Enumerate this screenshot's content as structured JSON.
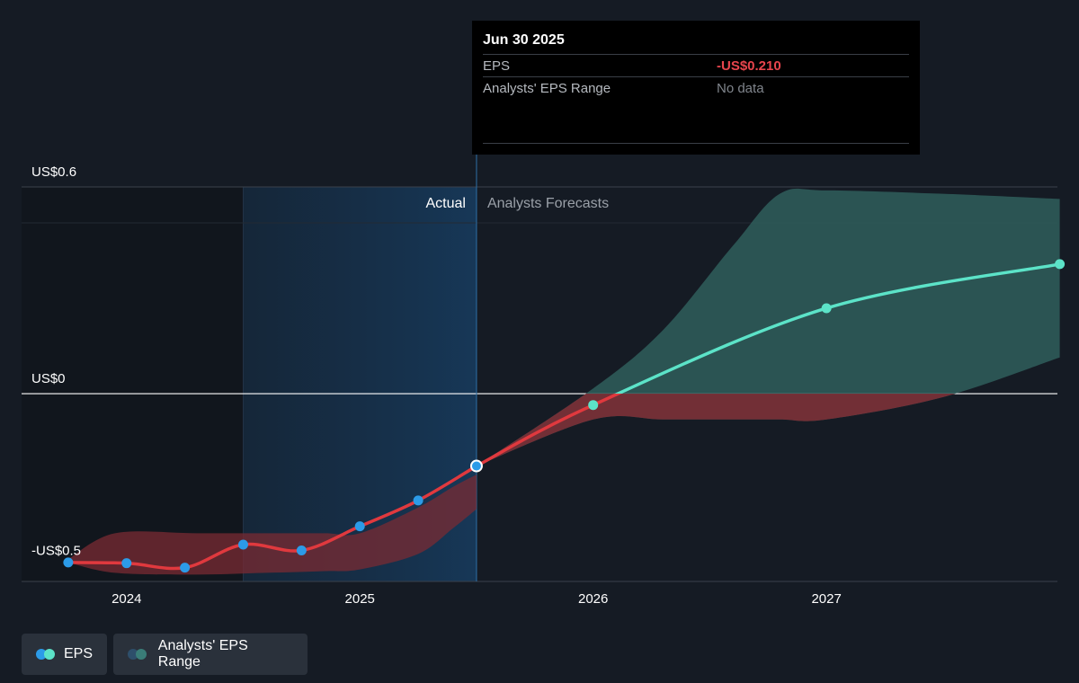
{
  "colors": {
    "background": "#151b24",
    "eps_actual": "#e0393e",
    "eps_forecast": "#5ce3c8",
    "marker_actual": "#2c9be8",
    "range_actual": "#7a2b33",
    "range_forecast": "#2f5e5c"
  },
  "tooltip": {
    "date": "Jun 30 2025",
    "eps_label": "EPS",
    "eps_value": "-US$0.210",
    "range_label": "Analysts' EPS Range",
    "range_value": "No data"
  },
  "chart_data": {
    "type": "line",
    "y_tick_labels": [
      "US$0.6",
      "US$0",
      "-US$0.5"
    ],
    "y_ticks": [
      0.6,
      0,
      -0.5
    ],
    "ylim": [
      -0.545,
      0.6
    ],
    "x_tick_labels": [
      "2024",
      "2025",
      "2026",
      "2027"
    ],
    "x_ticks": [
      2024.0,
      2025.0,
      2026.0,
      2027.0
    ],
    "xlim": [
      2023.55,
      2027.99
    ],
    "period_labels": {
      "actual": "Actual",
      "forecast": "Analysts Forecasts"
    },
    "divider_x": 2025.5,
    "highlight_start_x": 2024.5,
    "series": [
      {
        "name": "EPS",
        "kind": "actual",
        "x": [
          2023.75,
          2024.0,
          2024.25,
          2024.5,
          2024.75,
          2025.0,
          2025.25,
          2025.5
        ],
        "y": [
          -0.49,
          -0.492,
          -0.505,
          -0.438,
          -0.455,
          -0.385,
          -0.31,
          -0.21
        ]
      },
      {
        "name": "EPS",
        "kind": "forecast",
        "x": [
          2025.5,
          2026.0,
          2027.0,
          2028.0
        ],
        "y": [
          -0.21,
          -0.033,
          0.248,
          0.376
        ]
      }
    ],
    "ranges": [
      {
        "kind": "actual",
        "x": [
          2023.75,
          2023.95,
          2024.3,
          2024.6,
          2024.85,
          2025.0,
          2025.25,
          2025.4,
          2025.5
        ],
        "upper": [
          -0.48,
          -0.405,
          -0.405,
          -0.405,
          -0.405,
          -0.405,
          -0.33,
          -0.27,
          -0.235
        ],
        "lower": [
          -0.49,
          -0.52,
          -0.525,
          -0.52,
          -0.515,
          -0.51,
          -0.465,
          -0.39,
          -0.335
        ]
      },
      {
        "kind": "forecast",
        "x": [
          2025.5,
          2026.0,
          2026.3,
          2026.6,
          2026.8,
          2027.0,
          2027.5,
          2028.0
        ],
        "upper": [
          -0.21,
          0.015,
          0.185,
          0.43,
          0.58,
          0.59,
          0.58,
          0.565
        ],
        "lower": [
          -0.21,
          -0.075,
          -0.075,
          -0.075,
          -0.075,
          -0.075,
          -0.01,
          0.105
        ]
      }
    ],
    "legend": [
      "EPS",
      "Analysts' EPS Range"
    ]
  }
}
